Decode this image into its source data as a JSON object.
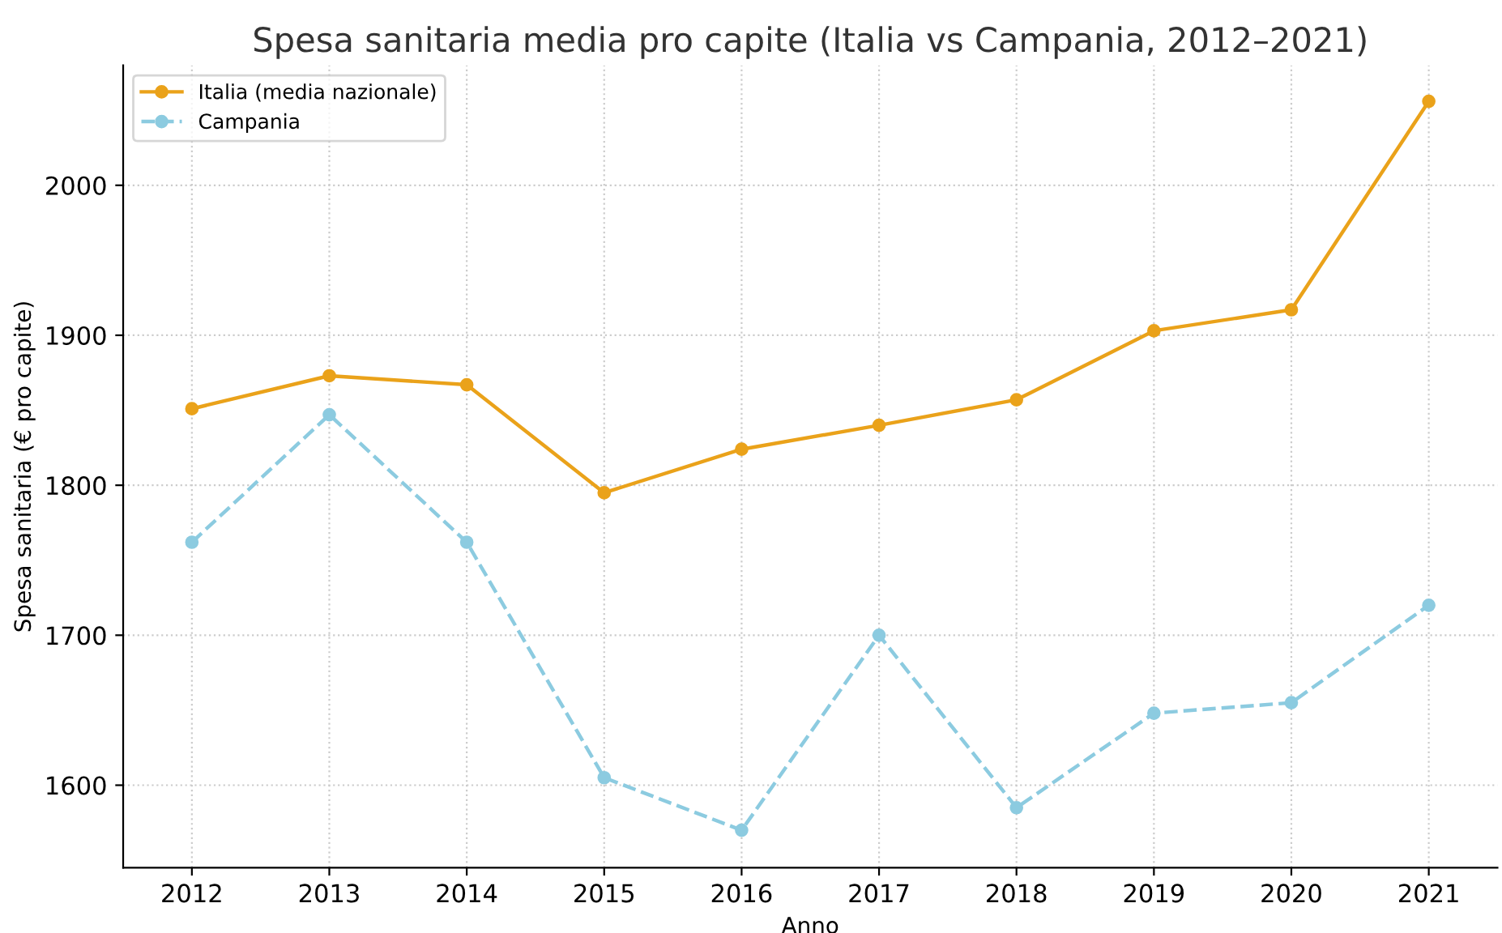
{
  "chart_data": {
    "type": "line",
    "title": "Spesa sanitaria media pro capite (Italia vs Campania, 2012–2021)",
    "xlabel": "Anno",
    "ylabel": "Spesa sanitaria (€ pro capite)",
    "categories": [
      "2012",
      "2013",
      "2014",
      "2015",
      "2016",
      "2017",
      "2018",
      "2019",
      "2020",
      "2021"
    ],
    "series": [
      {
        "name": "Italia (media nazionale)",
        "color": "#eaa21a",
        "line_style": "solid",
        "values": [
          1851,
          1873,
          1867,
          1795,
          1824,
          1840,
          1857,
          1903,
          1917,
          2056
        ]
      },
      {
        "name": "Campania",
        "color": "#8ccbe0",
        "line_style": "dashed",
        "values": [
          1762,
          1847,
          1762,
          1605,
          1570,
          1700,
          1585,
          1648,
          1655,
          1720
        ]
      }
    ],
    "ylim": [
      1545,
      2080
    ],
    "yticks": [
      1600,
      1700,
      1800,
      1900,
      2000
    ],
    "grid": true,
    "legend": "top left",
    "marker": "circle"
  }
}
